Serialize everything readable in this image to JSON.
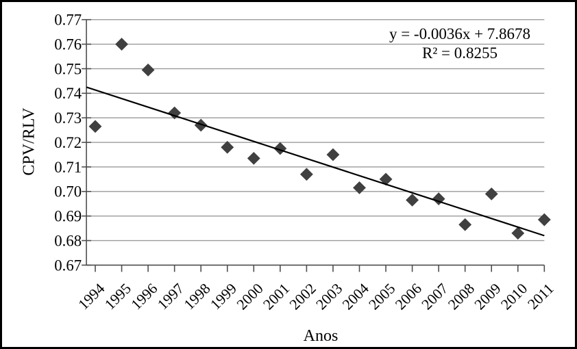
{
  "chart_data": {
    "type": "scatter",
    "title": "",
    "xlabel": "Anos",
    "ylabel": "CPV/RLV",
    "categories": [
      "1994",
      "1995",
      "1996",
      "1997",
      "1998",
      "1999",
      "2000",
      "2001",
      "2002",
      "2003",
      "2004",
      "2005",
      "2006",
      "2007",
      "2008",
      "2009",
      "2010",
      "2011"
    ],
    "series": [
      {
        "name": "CPV/RLV",
        "values": [
          0.7265,
          0.76,
          0.7495,
          0.732,
          0.727,
          0.718,
          0.7135,
          0.7175,
          0.707,
          0.715,
          0.7015,
          0.705,
          0.6965,
          0.697,
          0.6865,
          0.699,
          0.683,
          0.6885
        ]
      }
    ],
    "ylim": [
      0.67,
      0.77
    ],
    "y_tick_labels": [
      "0.77",
      "0.76",
      "0.75",
      "0.74",
      "0.73",
      "0.72",
      "0.71",
      "0.70",
      "0.69",
      "0.68",
      "0.67"
    ],
    "grid": "horizontal-only",
    "legend_position": "none",
    "marker_shape": "diamond",
    "trendline": {
      "equation": "y = -0.0036x + 7.8678",
      "r_squared": "R² = 0.8255",
      "start_value": 0.7425,
      "end_value": 0.682
    },
    "colors": {
      "marker": "#404040",
      "trendline": "#000000",
      "gridline": "#9a9a9a",
      "axis": "#4d4d4d",
      "text": "#000000",
      "border": "#000000",
      "background": "#ffffff"
    }
  }
}
